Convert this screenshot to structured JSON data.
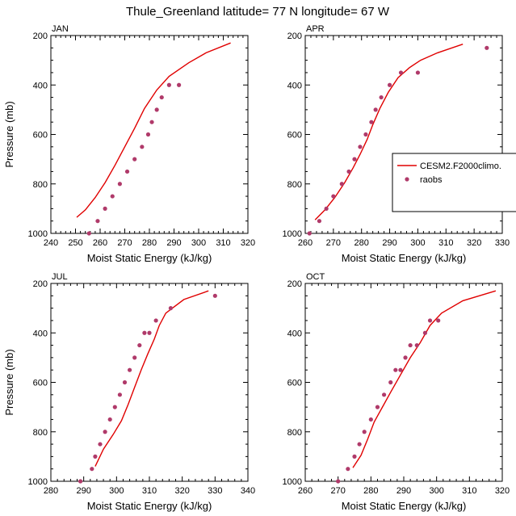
{
  "figure_title": "Thule_Greenland  latitude= 77 N longitude= 67 W",
  "colors": {
    "model": "#e00000",
    "obs": "#b03a6a"
  },
  "legend": {
    "placement": "right of APR panel",
    "entries": [
      "CESM2.F2000climo.",
      "raobs"
    ]
  },
  "chart_data": [
    {
      "type": "scatter",
      "panel": "JAN",
      "xlabel": "Moist Static Energy (kJ/kg)",
      "ylabel": "Pressure (mb)",
      "xlim": [
        240,
        320
      ],
      "ylim": [
        1000,
        200
      ],
      "xticks": [
        240,
        250,
        260,
        270,
        280,
        290,
        300,
        310,
        320
      ],
      "yticks": [
        200,
        400,
        600,
        800,
        1000
      ],
      "series": [
        {
          "name": "CESM2.F2000climo.",
          "kind": "line",
          "x": [
            250.5,
            254,
            258,
            262,
            266,
            270,
            274,
            278,
            283,
            288,
            296,
            303,
            313
          ],
          "y": [
            935,
            905,
            855,
            795,
            725,
            650,
            575,
            495,
            420,
            365,
            310,
            270,
            230
          ]
        },
        {
          "name": "raobs",
          "kind": "markers",
          "x": [
            255.5,
            259,
            262,
            265,
            268,
            271,
            274,
            277,
            279.5,
            281,
            283,
            285,
            288,
            292
          ],
          "y": [
            1000,
            950,
            900,
            850,
            800,
            750,
            700,
            650,
            600,
            550,
            500,
            450,
            400,
            400
          ]
        }
      ]
    },
    {
      "type": "scatter",
      "panel": "APR",
      "xlabel": "Moist Static Energy (kJ/kg)",
      "ylabel": "Pressure (mb)",
      "xlim": [
        260,
        330
      ],
      "ylim": [
        1000,
        200
      ],
      "xticks": [
        260,
        270,
        280,
        290,
        300,
        310,
        320,
        330
      ],
      "yticks": [
        200,
        400,
        600,
        800,
        1000
      ],
      "series": [
        {
          "name": "CESM2.F2000climo.",
          "kind": "line",
          "x": [
            263.5,
            267,
            270.5,
            274,
            277,
            279.5,
            282,
            284,
            286.5,
            289.5,
            293,
            297,
            301,
            307,
            316
          ],
          "y": [
            945,
            905,
            855,
            795,
            735,
            680,
            620,
            560,
            495,
            430,
            370,
            330,
            300,
            270,
            235
          ]
        },
        {
          "name": "raobs",
          "kind": "markers",
          "x": [
            261.5,
            265,
            267.5,
            270,
            273,
            275.5,
            277.5,
            279.5,
            281.5,
            283.5,
            285,
            287,
            290,
            294,
            300,
            324.5
          ],
          "y": [
            1000,
            950,
            900,
            850,
            800,
            750,
            700,
            650,
            600,
            550,
            500,
            450,
            400,
            350,
            350,
            250
          ]
        }
      ]
    },
    {
      "type": "scatter",
      "panel": "JUL",
      "xlabel": "Moist Static Energy (kJ/kg)",
      "ylabel": "Pressure (mb)",
      "xlim": [
        280,
        340
      ],
      "ylim": [
        1000,
        200
      ],
      "xticks": [
        280,
        290,
        300,
        310,
        320,
        330,
        340
      ],
      "yticks": [
        200,
        400,
        600,
        800,
        1000
      ],
      "series": [
        {
          "name": "CESM2.F2000climo.",
          "kind": "line",
          "x": [
            293.5,
            296,
            299,
            301.5,
            303.5,
            305.5,
            307.5,
            309.5,
            311.5,
            313,
            315,
            317,
            320.5,
            328
          ],
          "y": [
            940,
            870,
            810,
            755,
            690,
            620,
            550,
            485,
            425,
            370,
            320,
            300,
            265,
            230
          ]
        },
        {
          "name": "raobs",
          "kind": "markers",
          "x": [
            289,
            292.5,
            293.5,
            295,
            296.5,
            298,
            299.5,
            301,
            302.5,
            304,
            305.5,
            307,
            308.5,
            310,
            312,
            316.5,
            330
          ],
          "y": [
            1000,
            950,
            900,
            850,
            800,
            750,
            700,
            650,
            600,
            550,
            500,
            450,
            400,
            400,
            350,
            300,
            250
          ]
        }
      ]
    },
    {
      "type": "scatter",
      "panel": "OCT",
      "xlabel": "Moist Static Energy (kJ/kg)",
      "ylabel": "Pressure (mb)",
      "xlim": [
        260,
        320
      ],
      "ylim": [
        1000,
        200
      ],
      "xticks": [
        260,
        270,
        280,
        290,
        300,
        310,
        320
      ],
      "yticks": [
        200,
        400,
        600,
        800,
        1000
      ],
      "series": [
        {
          "name": "CESM2.F2000climo.",
          "kind": "line",
          "x": [
            274.5,
            277,
            279,
            281,
            283.5,
            286,
            289,
            292,
            295,
            298,
            301.5,
            308,
            318
          ],
          "y": [
            945,
            895,
            830,
            760,
            700,
            640,
            570,
            500,
            440,
            370,
            320,
            270,
            230
          ]
        },
        {
          "name": "raobs",
          "kind": "markers",
          "x": [
            270,
            273,
            275,
            276.5,
            278,
            280,
            282,
            284,
            286,
            287.5,
            289,
            290.5,
            292,
            294,
            296.5,
            298,
            300.5
          ],
          "y": [
            1000,
            950,
            900,
            850,
            800,
            750,
            700,
            650,
            600,
            550,
            550,
            500,
            450,
            450,
            400,
            350,
            350
          ]
        }
      ]
    }
  ]
}
